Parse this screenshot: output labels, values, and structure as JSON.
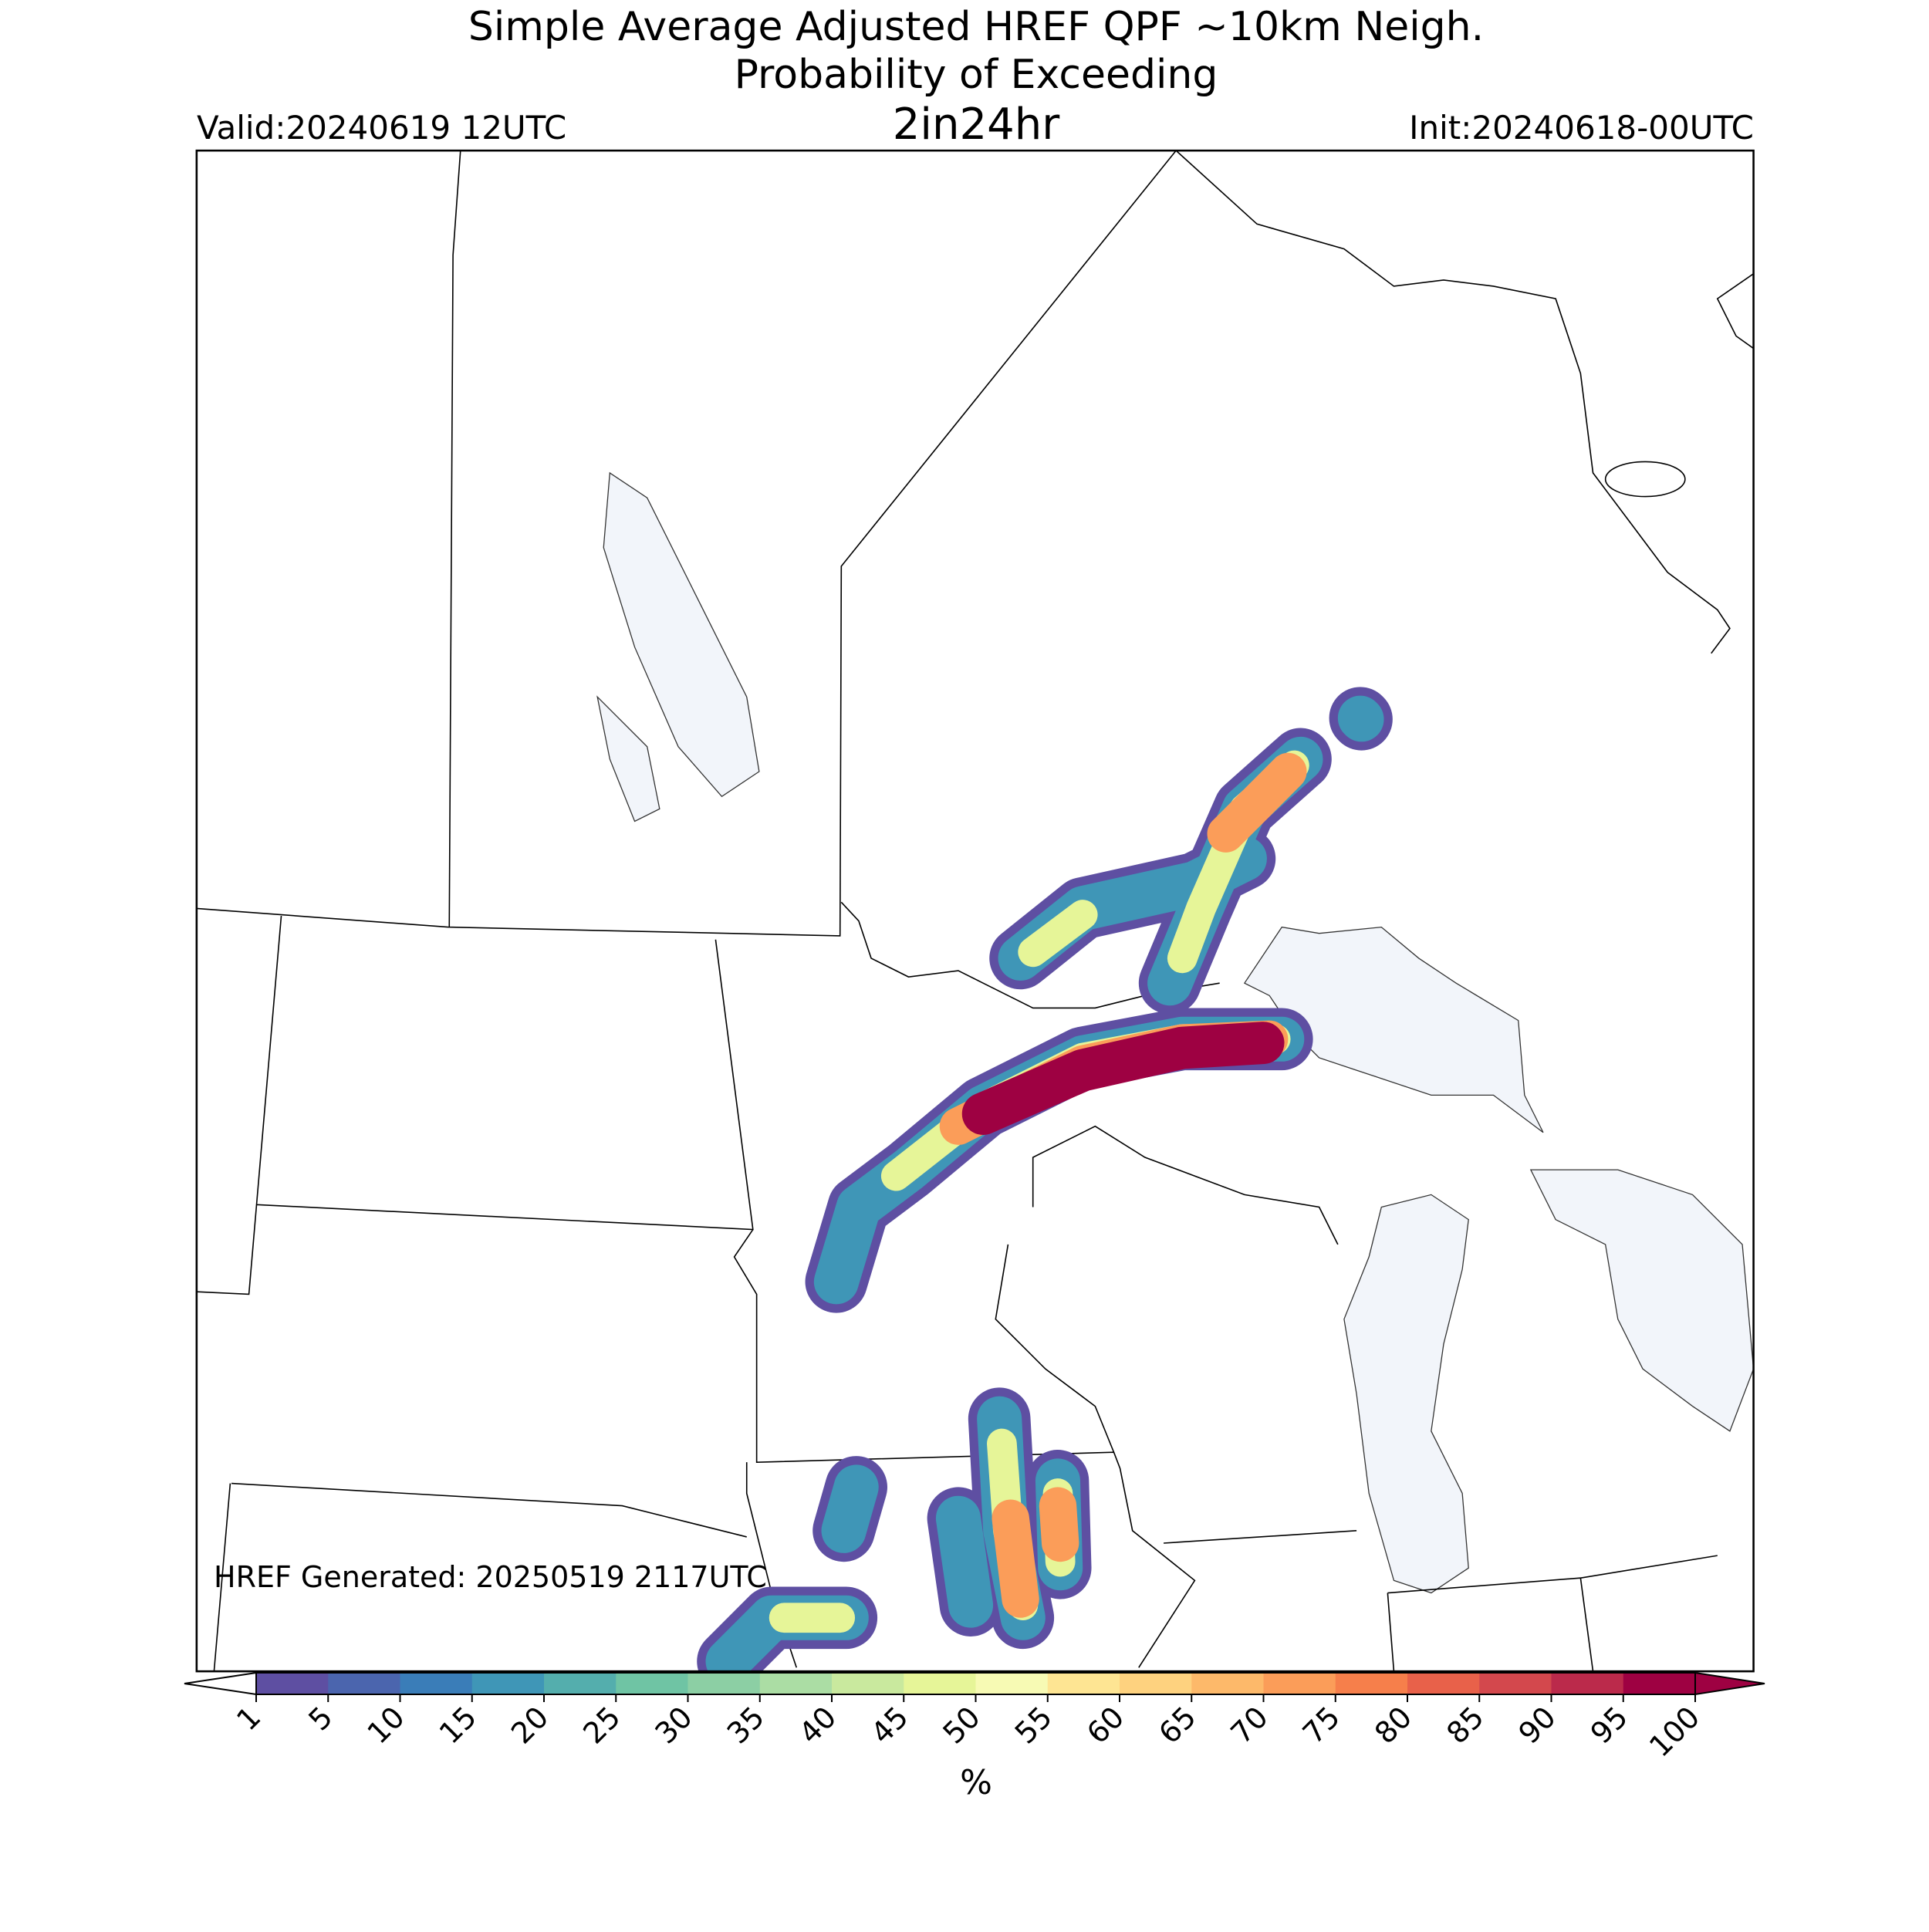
{
  "header": {
    "title": "Simple Average Adjusted HREF QPF ~10km Neigh.",
    "subtitle": "Probability of Exceeding",
    "threshold": "2in24hr",
    "valid": "Valid:20240619 12UTC",
    "init": "Init:20240618-00UTC"
  },
  "map": {
    "footer": "HREF Generated: 20250519 2117UTC"
  },
  "colorbar": {
    "ticks": [
      1,
      5,
      10,
      15,
      20,
      25,
      30,
      35,
      40,
      45,
      50,
      55,
      60,
      65,
      70,
      75,
      80,
      85,
      90,
      95,
      100
    ],
    "colors": [
      "#5e4fa2",
      "#4b65ae",
      "#3a7db8",
      "#3f96b7",
      "#54aead",
      "#6fc4a4",
      "#8ccfa4",
      "#abdda4",
      "#c9e99e",
      "#e6f598",
      "#f7fab4",
      "#fee593",
      "#fed27f",
      "#fdb96a",
      "#fb9d59",
      "#f67f4b",
      "#e8614a",
      "#d3484d",
      "#bb2a4b",
      "#9e0142"
    ],
    "label": "%"
  }
}
